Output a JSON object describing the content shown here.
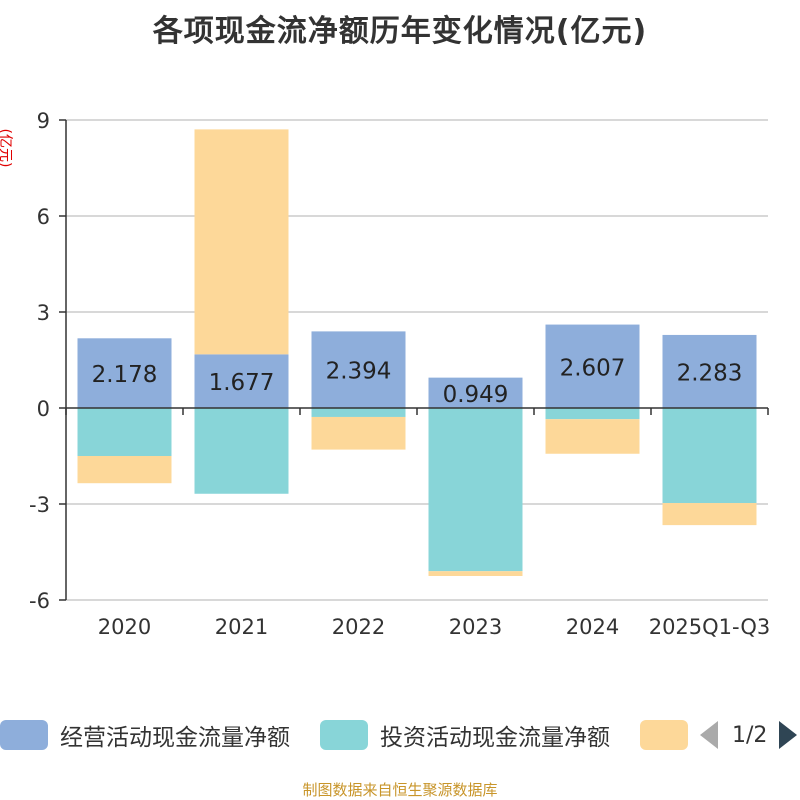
{
  "chart_data": {
    "type": "bar",
    "stacked": true,
    "title": "各项现金流净额历年变化情况(亿元)",
    "ylabel": "(亿元)",
    "ylim": [
      -6,
      9
    ],
    "yticks": [
      -6,
      -3,
      0,
      3,
      6,
      9
    ],
    "categories": [
      "2020",
      "2021",
      "2022",
      "2023",
      "2024",
      "2025Q1-Q3"
    ],
    "series": [
      {
        "name": "经营活动现金流量净额",
        "color": "#8eaedb",
        "values": [
          2.178,
          1.677,
          2.394,
          0.949,
          2.607,
          2.283
        ]
      },
      {
        "name": "投资活动现金流量净额",
        "color": "#88d5d8",
        "values": [
          -1.5,
          -2.68,
          -0.28,
          -5.1,
          -0.35,
          -2.97
        ]
      },
      {
        "name": "",
        "color": "#fdd899",
        "values": [
          -0.85,
          7.03,
          -1.02,
          -0.15,
          -1.08,
          -0.69
        ]
      }
    ],
    "data_labels": [
      "2.178",
      "1.677",
      "2.394",
      "0.949",
      "2.607",
      "2.283"
    ]
  },
  "legend": {
    "page": "1/2"
  },
  "footer": {
    "source": "制图数据来自恒生聚源数据库"
  }
}
